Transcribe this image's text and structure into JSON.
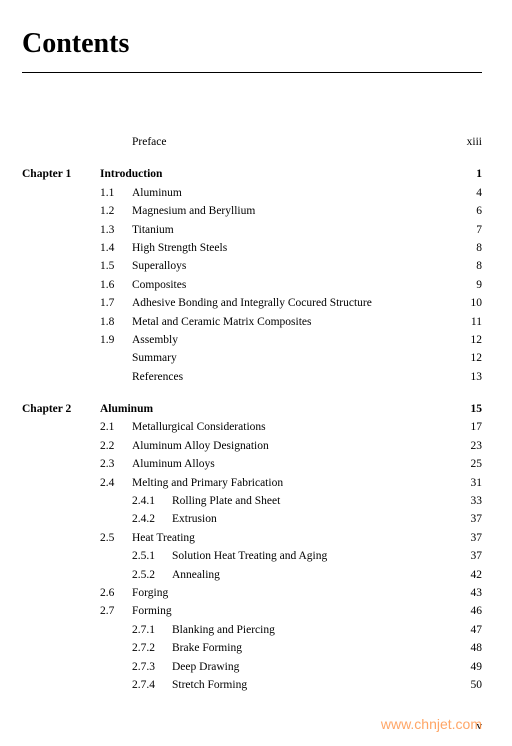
{
  "title": "Contents",
  "preface": {
    "label": "Preface",
    "page": "xiii"
  },
  "chapters": [
    {
      "label": "Chapter 1",
      "title": "Introduction",
      "page": "1",
      "sections": [
        {
          "num": "1.1",
          "title": "Aluminum",
          "page": "4"
        },
        {
          "num": "1.2",
          "title": "Magnesium and Beryllium",
          "page": "6"
        },
        {
          "num": "1.3",
          "title": "Titanium",
          "page": "7"
        },
        {
          "num": "1.4",
          "title": "High Strength Steels",
          "page": "8"
        },
        {
          "num": "1.5",
          "title": "Superalloys",
          "page": "8"
        },
        {
          "num": "1.6",
          "title": "Composites",
          "page": "9"
        },
        {
          "num": "1.7",
          "title": "Adhesive Bonding and Integrally Cocured Structure",
          "page": "10"
        },
        {
          "num": "1.8",
          "title": "Metal and Ceramic Matrix Composites",
          "page": "11"
        },
        {
          "num": "1.9",
          "title": "Assembly",
          "page": "12"
        },
        {
          "num": "",
          "title": "Summary",
          "page": "12"
        },
        {
          "num": "",
          "title": "References",
          "page": "13"
        }
      ]
    },
    {
      "label": "Chapter 2",
      "title": "Aluminum",
      "page": "15",
      "sections": [
        {
          "num": "2.1",
          "title": "Metallurgical Considerations",
          "page": "17"
        },
        {
          "num": "2.2",
          "title": "Aluminum Alloy Designation",
          "page": "23"
        },
        {
          "num": "2.3",
          "title": "Aluminum Alloys",
          "page": "25"
        },
        {
          "num": "2.4",
          "title": "Melting and Primary Fabrication",
          "page": "31",
          "subs": [
            {
              "num": "2.4.1",
              "title": "Rolling Plate and Sheet",
              "page": "33"
            },
            {
              "num": "2.4.2",
              "title": "Extrusion",
              "page": "37"
            }
          ]
        },
        {
          "num": "2.5",
          "title": "Heat Treating",
          "page": "37",
          "subs": [
            {
              "num": "2.5.1",
              "title": "Solution Heat Treating and Aging",
              "page": "37"
            },
            {
              "num": "2.5.2",
              "title": "Annealing",
              "page": "42"
            }
          ]
        },
        {
          "num": "2.6",
          "title": "Forging",
          "page": "43"
        },
        {
          "num": "2.7",
          "title": "Forming",
          "page": "46",
          "subs": [
            {
              "num": "2.7.1",
              "title": "Blanking and Piercing",
              "page": "47"
            },
            {
              "num": "2.7.2",
              "title": "Brake Forming",
              "page": "48"
            },
            {
              "num": "2.7.3",
              "title": "Deep Drawing",
              "page": "49"
            },
            {
              "num": "2.7.4",
              "title": "Stretch Forming",
              "page": "50"
            }
          ]
        }
      ]
    }
  ],
  "pageNumber": "v",
  "watermark": "www.chnjet.com"
}
